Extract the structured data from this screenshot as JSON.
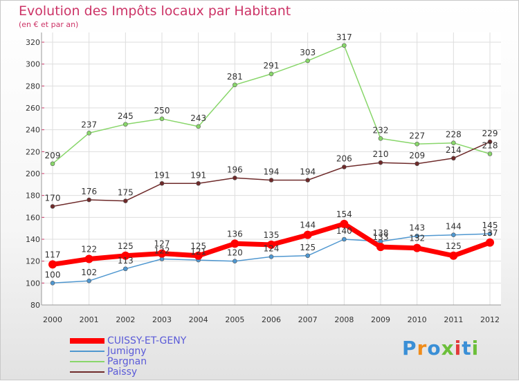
{
  "title": "Evolution des Impôts locaux par Habitant",
  "subtitle": "(en € et par an)",
  "brand": {
    "text": "Proxiti",
    "colors": [
      "#3a8fd6",
      "#f08c1a",
      "#3a8fd6",
      "#6cbf3a",
      "#e23a3a",
      "#3a8fd6",
      "#6cbf3a"
    ]
  },
  "chart_data": {
    "type": "line",
    "title": "Evolution des Impôts locaux par Habitant",
    "subtitle": "(en € et par an)",
    "x": [
      "2000",
      "2001",
      "2002",
      "2003",
      "2004",
      "2005",
      "2006",
      "2007",
      "2008",
      "2009",
      "2010",
      "2011",
      "2012"
    ],
    "ylim": [
      80,
      320
    ],
    "yticks": [
      80,
      100,
      120,
      140,
      160,
      180,
      200,
      220,
      240,
      260,
      280,
      300,
      320
    ],
    "grid": true,
    "legend_position": "bottom-left",
    "series": [
      {
        "name": "CUISSY-ET-GENY",
        "color": "#ff0000",
        "thick": true,
        "values": [
          117,
          122,
          125,
          127,
          125,
          136,
          135,
          144,
          154,
          133,
          132,
          125,
          137
        ],
        "labels": [
          "117",
          "122",
          "125",
          "127",
          "125",
          "136",
          "135",
          "144",
          "154",
          "133",
          "132",
          "125",
          "137"
        ]
      },
      {
        "name": "Jumigny",
        "color": "#4f97d0",
        "thick": false,
        "values": [
          100,
          102,
          113,
          122,
          121,
          120,
          124,
          125,
          140,
          138,
          143,
          144,
          145
        ],
        "labels": [
          "100",
          "102",
          "113",
          "122",
          "121",
          "120",
          "124",
          "125",
          "140",
          "138",
          "143",
          "144",
          "145"
        ]
      },
      {
        "name": "Pargnan",
        "color": "#88d66a",
        "thick": false,
        "values": [
          209,
          237,
          245,
          250,
          243,
          281,
          291,
          303,
          317,
          232,
          227,
          228,
          218
        ],
        "labels": [
          "209",
          "237",
          "245",
          "250",
          "243",
          "281",
          "291",
          "303",
          "317",
          "232",
          "227",
          "228",
          "218"
        ]
      },
      {
        "name": "Paissy",
        "color": "#6e2a2a",
        "thick": false,
        "values": [
          170,
          176,
          175,
          191,
          191,
          196,
          194,
          194,
          206,
          210,
          209,
          214,
          229
        ],
        "labels": [
          "170",
          "176",
          "175",
          "191",
          "191",
          "196",
          "194",
          "194",
          "206",
          "210",
          "209",
          "214",
          "229"
        ]
      }
    ]
  }
}
